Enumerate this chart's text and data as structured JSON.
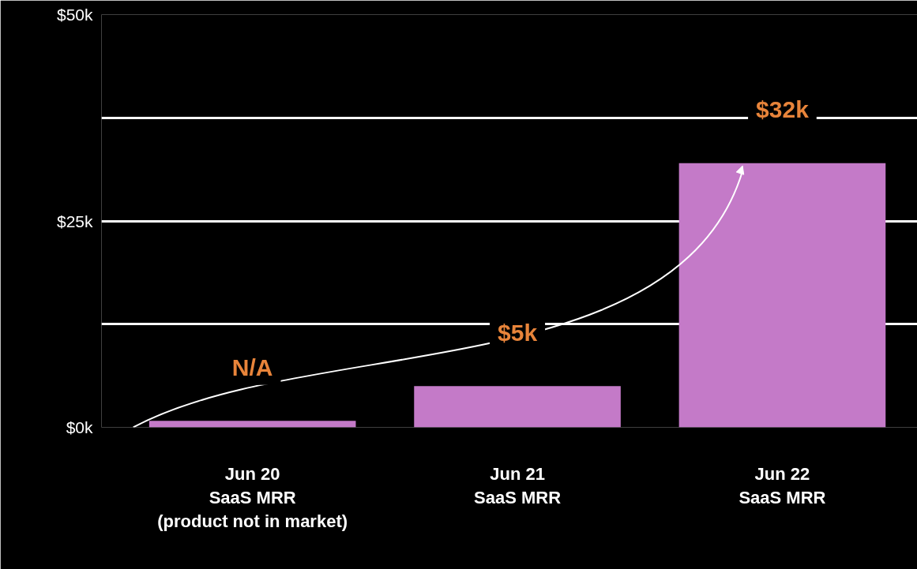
{
  "chart_data": {
    "type": "bar",
    "categories": [
      "Jun 20\nSaaS MRR\n(product not in market)",
      "Jun 21\nSaaS MRR",
      "Jun 22\nSaaS MRR"
    ],
    "values": [
      0.8,
      5,
      32
    ],
    "value_labels": [
      "N/A",
      "$5k",
      "$32k"
    ],
    "color": "#c47ac8",
    "ylim": [
      0,
      50
    ],
    "yticks": [
      {
        "value": 0,
        "label": "$0k"
      },
      {
        "value": 12.5,
        "label": null
      },
      {
        "value": 25,
        "label": "$25k"
      },
      {
        "value": 37.5,
        "label": null
      },
      {
        "value": 50,
        "label": "$50k"
      }
    ],
    "grid": "y"
  }
}
